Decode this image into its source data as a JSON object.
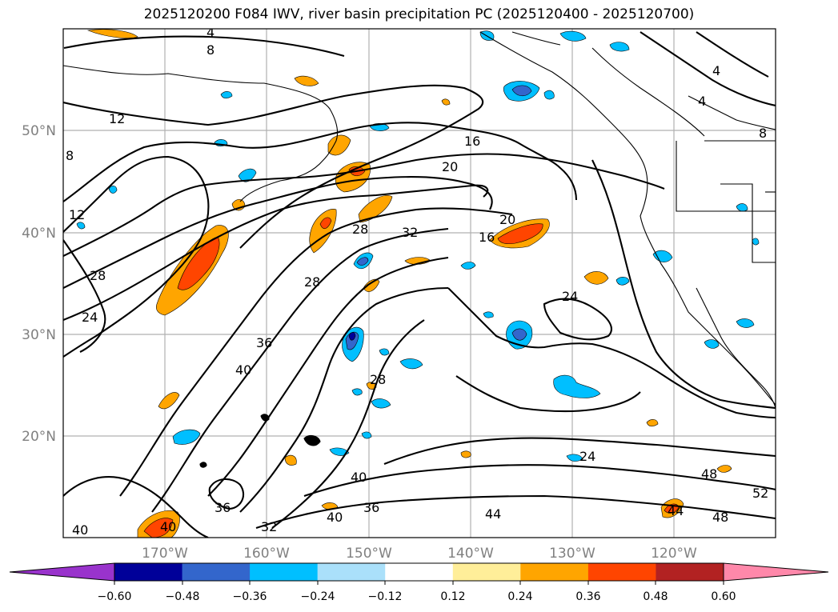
{
  "title": "2025120200 F084 IWV, river basin precipitation PC (2025120400 - 2025120700)",
  "lon_ticks": [
    "170°W",
    "160°W",
    "150°W",
    "140°W",
    "130°W",
    "120°W"
  ],
  "lat_ticks": [
    "50°N",
    "40°N",
    "30°N",
    "20°N"
  ],
  "contour_labels": [
    "4",
    "8",
    "4",
    "4",
    "8",
    "12",
    "16",
    "20",
    "20",
    "16",
    "12",
    "24",
    "28",
    "32",
    "28",
    "24",
    "36",
    "40",
    "28",
    "24",
    "40",
    "36",
    "40",
    "44",
    "44",
    "48",
    "48",
    "52",
    "36",
    "32",
    "40",
    "40",
    "28",
    "8"
  ],
  "colorbar": {
    "ticks": [
      "−0.60",
      "−0.48",
      "−0.36",
      "−0.24",
      "−0.12",
      "0.12",
      "0.24",
      "0.36",
      "0.48",
      "0.60"
    ],
    "colors": [
      "#9933cc",
      "#000099",
      "#3366cc",
      "#00bfff",
      "#aae0fa",
      "#ffffff",
      "#ffee99",
      "#ffa500",
      "#ff4500",
      "#b22222",
      "#ff88aa"
    ]
  }
}
